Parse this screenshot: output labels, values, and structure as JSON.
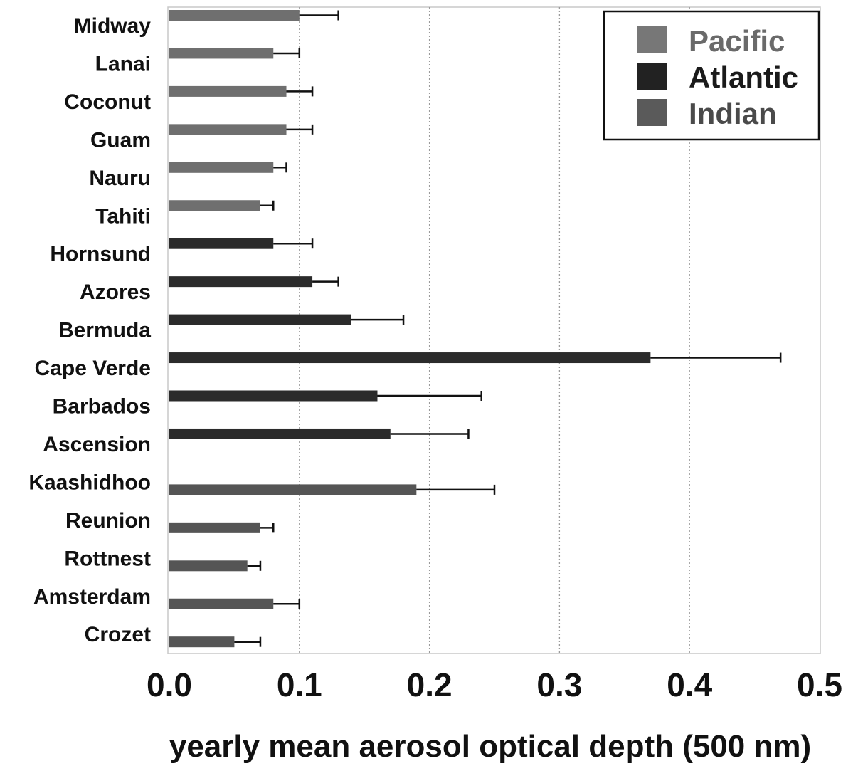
{
  "chart_data": {
    "type": "bar",
    "orientation": "horizontal",
    "title": "",
    "xlabel": "yearly mean aerosol optical depth (500 nm)",
    "ylabel": "",
    "xlim": [
      0,
      0.5
    ],
    "xticks": [
      0.0,
      0.1,
      0.2,
      0.3,
      0.4,
      0.5
    ],
    "xtick_labels": [
      "0.0",
      "0.1",
      "0.2",
      "0.3",
      "0.4",
      "0.5"
    ],
    "grid": "vertical dashed",
    "legend": {
      "placement": "top-right",
      "entries": [
        "Pacific",
        "Atlantic",
        "Indian"
      ]
    },
    "colors": {
      "Pacific": "#6f6f6f",
      "Atlantic": "#2b2b2b",
      "Indian": "#555555"
    },
    "series": [
      {
        "name": "Pacific",
        "items": [
          {
            "station": "Midway",
            "value": 0.1,
            "error": 0.03
          },
          {
            "station": "Lanai",
            "value": 0.08,
            "error": 0.02
          },
          {
            "station": "Coconut",
            "value": 0.09,
            "error": 0.02
          },
          {
            "station": "Guam",
            "value": 0.09,
            "error": 0.02
          },
          {
            "station": "Nauru",
            "value": 0.08,
            "error": 0.01
          },
          {
            "station": "Tahiti",
            "value": 0.07,
            "error": 0.01
          }
        ]
      },
      {
        "name": "Atlantic",
        "items": [
          {
            "station": "Hornsund",
            "value": 0.08,
            "error": 0.03
          },
          {
            "station": "Azores",
            "value": 0.11,
            "error": 0.02
          },
          {
            "station": "Bermuda",
            "value": 0.14,
            "error": 0.04
          },
          {
            "station": "Cape Verde",
            "value": 0.37,
            "error": 0.1
          },
          {
            "station": "Barbados",
            "value": 0.16,
            "error": 0.08
          },
          {
            "station": "Ascension",
            "value": 0.17,
            "error": 0.06
          }
        ]
      },
      {
        "name": "Indian",
        "items": [
          {
            "station": "Kaashidhoo",
            "value": 0.19,
            "error": 0.06
          },
          {
            "station": "Reunion",
            "value": 0.07,
            "error": 0.01
          },
          {
            "station": "Rottnest",
            "value": 0.06,
            "error": 0.01
          },
          {
            "station": "Amsterdam",
            "value": 0.08,
            "error": 0.02
          },
          {
            "station": "Crozet",
            "value": 0.05,
            "error": 0.02
          }
        ]
      }
    ]
  }
}
